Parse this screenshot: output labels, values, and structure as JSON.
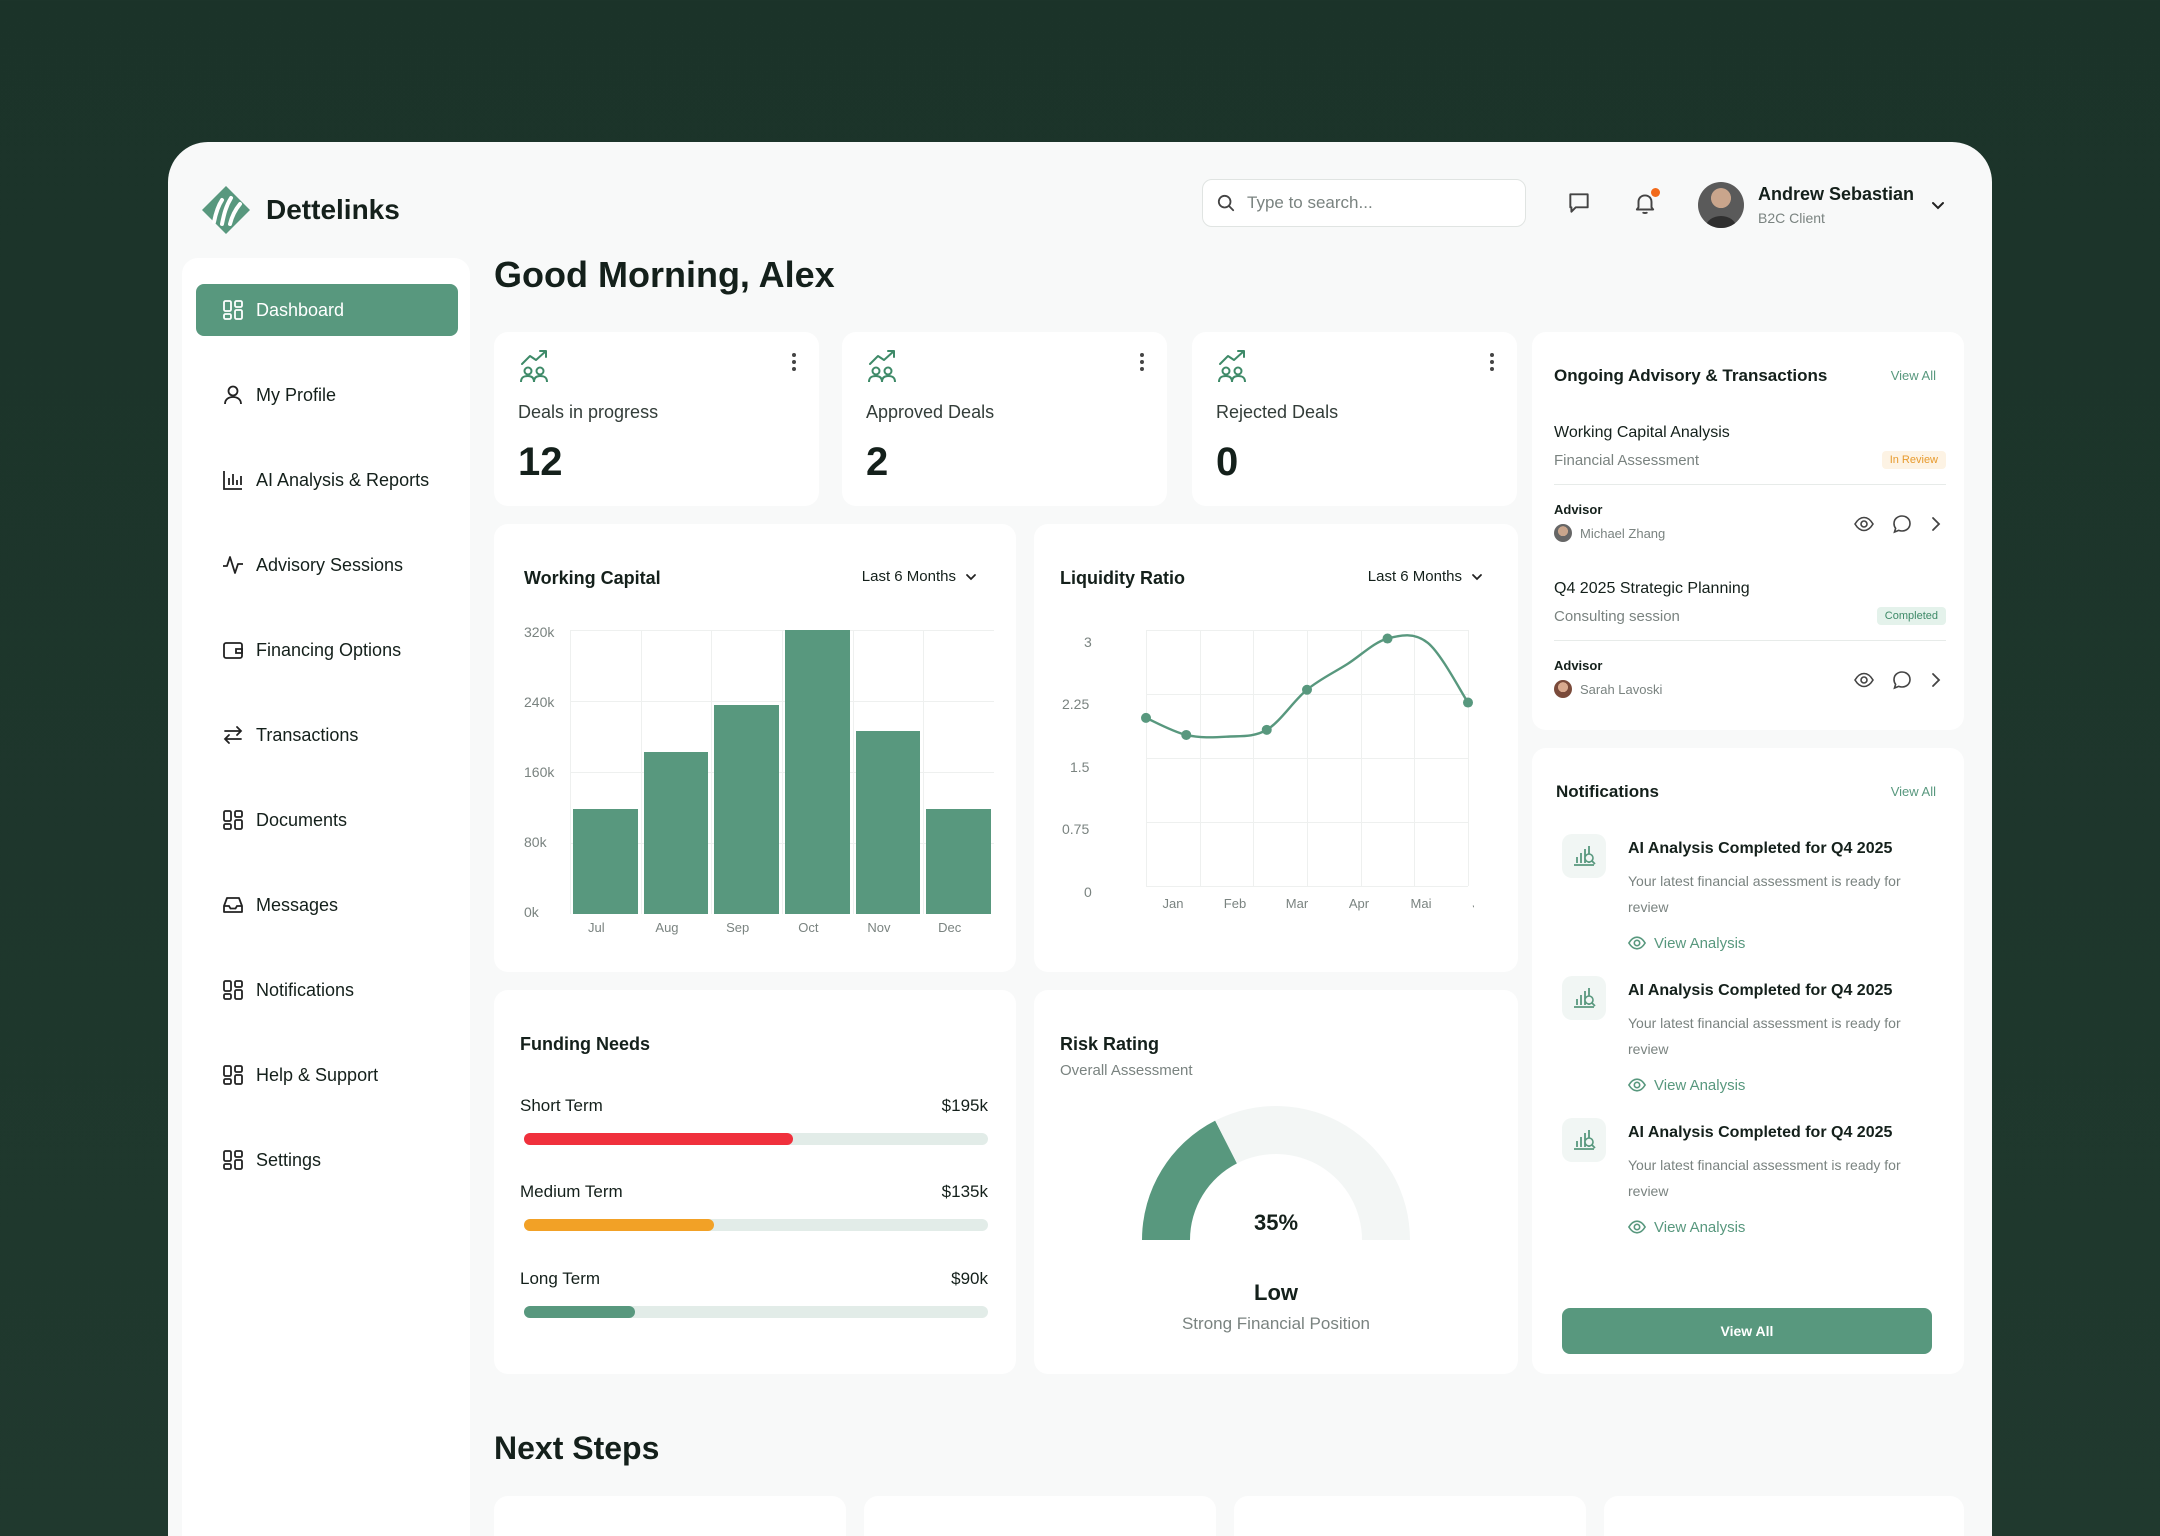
{
  "brand": {
    "name": "Dettelinks",
    "color": "#58987e"
  },
  "search": {
    "placeholder": "Type to search..."
  },
  "header": {
    "icons": [
      "chat-icon",
      "bell-icon"
    ],
    "has_unread": true,
    "user": {
      "name": "Andrew Sebastian",
      "role": "B2C Client"
    }
  },
  "sidebar": {
    "items": [
      {
        "label": "Dashboard",
        "icon": "dashboard-icon",
        "active": true
      },
      {
        "label": "My Profile",
        "icon": "user-icon"
      },
      {
        "label": "AI Analysis & Reports",
        "icon": "bar-chart-icon"
      },
      {
        "label": "Advisory Sessions",
        "icon": "activity-icon"
      },
      {
        "label": "Financing Options",
        "icon": "wallet-icon"
      },
      {
        "label": "Transactions",
        "icon": "transfer-icon"
      },
      {
        "label": "Documents",
        "icon": "grid-icon"
      },
      {
        "label": "Messages",
        "icon": "inbox-icon"
      },
      {
        "label": "Notifications",
        "icon": "grid-icon"
      },
      {
        "label": "Help & Support",
        "icon": "grid-icon"
      },
      {
        "label": "Settings",
        "icon": "grid-icon"
      }
    ]
  },
  "greeting": "Good Morning, Alex",
  "stats": [
    {
      "label": "Deals in progress",
      "value": "12"
    },
    {
      "label": "Approved Deals",
      "value": "2"
    },
    {
      "label": "Rejected Deals",
      "value": "0"
    }
  ],
  "working_capital": {
    "title": "Working Capital",
    "period": "Last 6 Months",
    "y_ticks": [
      "320k",
      "240k",
      "160k",
      "80k",
      "0k"
    ]
  },
  "liquidity": {
    "title": "Liquidity Ratio",
    "period": "Last 6 Months",
    "y_ticks": [
      "3",
      "2.25",
      "1.5",
      "0.75",
      "0"
    ]
  },
  "chart_data": [
    {
      "type": "bar",
      "title": "Working Capital",
      "categories": [
        "Jul",
        "Aug",
        "Sep",
        "Oct",
        "Nov",
        "Dec"
      ],
      "values": [
        118,
        182,
        236,
        320,
        206,
        118
      ],
      "ylim": [
        0,
        320
      ],
      "unit": "k",
      "grid": true
    },
    {
      "type": "line",
      "title": "Liquidity Ratio",
      "categories": [
        "Jan",
        "Feb",
        "Mar",
        "Apr",
        "Mai",
        "Jun"
      ],
      "points": [
        {
          "x": "Jan",
          "y": 1.97
        },
        {
          "x": "Feb",
          "y": 1.77
        },
        {
          "x": "Feb-Mar",
          "y": 1.75
        },
        {
          "x": "Mar",
          "y": 1.83
        },
        {
          "x": "Apr",
          "y": 2.3
        },
        {
          "x": "Apr-Mai",
          "y": 2.6
        },
        {
          "x": "Mai",
          "y": 2.9
        },
        {
          "x": "Mai-Jun",
          "y": 2.85
        },
        {
          "x": "Jun",
          "y": 2.15
        }
      ],
      "ylim": [
        0,
        3
      ],
      "grid": true,
      "smooth": true
    }
  ],
  "funding": {
    "title": "Funding Needs",
    "rows": [
      {
        "label": "Short Term",
        "value": "$195k",
        "fraction": 0.58,
        "color": "#f0303c"
      },
      {
        "label": "Medium Term",
        "value": "$135k",
        "fraction": 0.41,
        "color": "#f2a126"
      },
      {
        "label": "Long Term",
        "value": "$90k",
        "fraction": 0.24,
        "color": "#58987e"
      }
    ]
  },
  "risk": {
    "title": "Risk Rating",
    "subtitle": "Overall Assessment",
    "percent": 35,
    "percent_label": "35%",
    "level": "Low",
    "description": "Strong Financial Position"
  },
  "advisory": {
    "title": "Ongoing Advisory & Transactions",
    "view_all": "View All",
    "advisor_label": "Advisor",
    "items": [
      {
        "title": "Working Capital Analysis",
        "subtitle": "Financial Assessment",
        "status": "In Review",
        "advisor": "Michael Zhang"
      },
      {
        "title": "Q4 2025 Strategic Planning",
        "subtitle": "Consulting session",
        "status": "Completed",
        "advisor": "Sarah Lavoski"
      }
    ]
  },
  "notifications": {
    "title": "Notifications",
    "view_all": "View All",
    "button": "View All",
    "items": [
      {
        "title": "AI Analysis Completed for Q4 2025",
        "text": "Your latest financial assessment is ready for review",
        "link": "View Analysis"
      },
      {
        "title": "AI Analysis Completed for Q4 2025",
        "text": "Your latest financial assessment is ready for review",
        "link": "View Analysis"
      },
      {
        "title": "AI Analysis Completed for Q4 2025",
        "text": "Your latest financial assessment is ready for review",
        "link": "View Analysis"
      }
    ]
  },
  "next_steps": {
    "title": "Next Steps"
  }
}
